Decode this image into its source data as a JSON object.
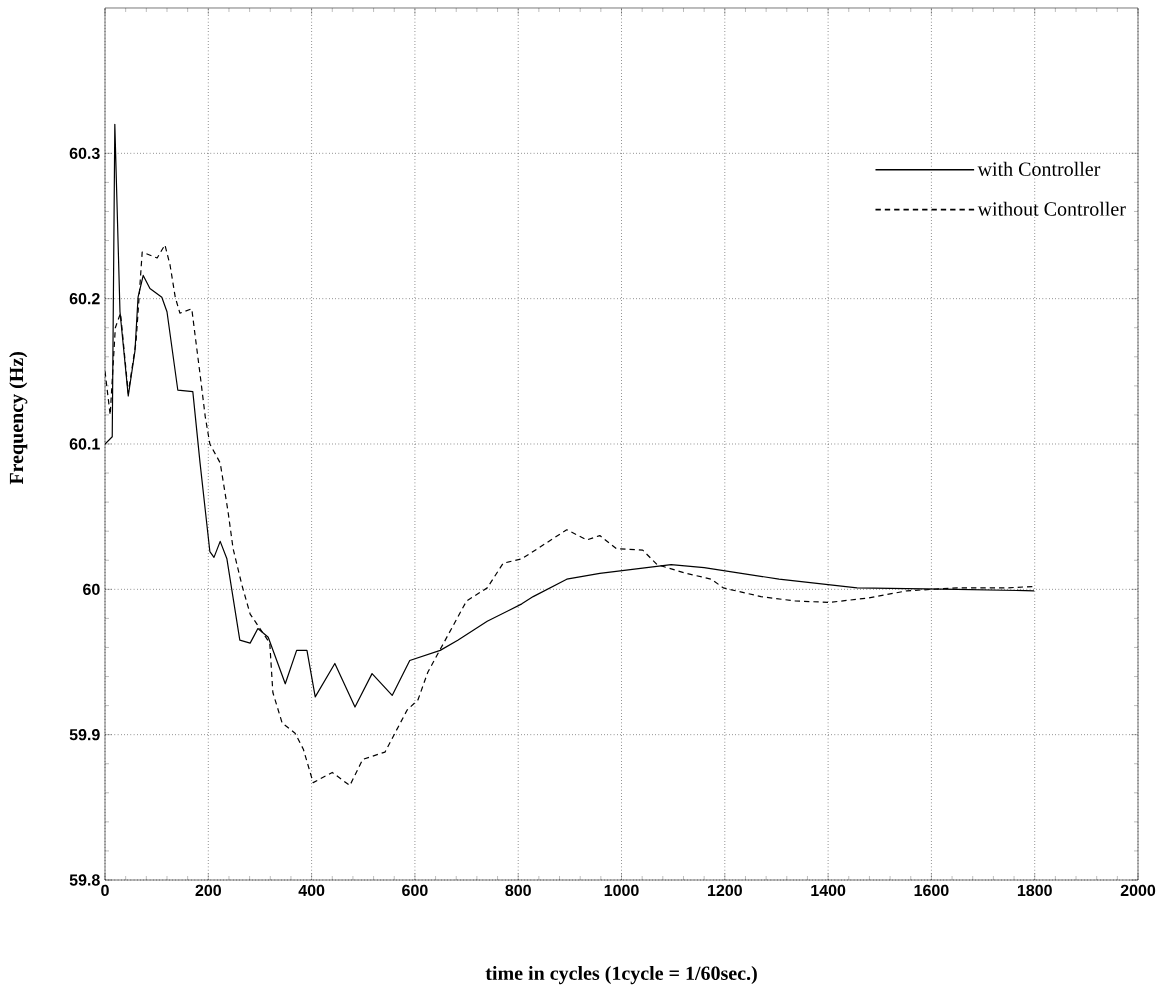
{
  "chart_data": {
    "type": "line",
    "xlabel": "time in cycles (1cycle = 1/60sec.)",
    "ylabel": "Frequency (Hz)",
    "xlim": [
      0,
      2000
    ],
    "ylim": [
      59.8,
      60.4
    ],
    "xticks": [
      0,
      200,
      400,
      600,
      800,
      1000,
      1200,
      1400,
      1600,
      1800,
      2000
    ],
    "yticks": [
      59.8,
      59.9,
      60,
      60.1,
      60.2,
      60.3
    ],
    "grid": true,
    "legend": "top right",
    "series": [
      {
        "name": "with Controller",
        "color": "#000000",
        "line_style": "solid",
        "x": [
          0,
          14,
          19,
          29,
          45,
          58,
          64,
          74,
          87,
          110,
          120,
          141,
          170,
          184,
          203,
          211,
          223,
          236,
          261,
          281,
          296,
          316,
          349,
          371,
          391,
          407,
          445,
          484,
          517,
          556,
          590,
          649,
          683,
          740,
          807,
          829,
          894,
          958,
          1096,
          1160,
          1305,
          1456,
          1650,
          1799
        ],
        "values": [
          60.1,
          60.105,
          60.32,
          60.191,
          60.133,
          60.164,
          60.201,
          60.216,
          60.207,
          60.201,
          60.191,
          60.137,
          60.136,
          60.087,
          60.026,
          60.022,
          60.033,
          60.021,
          59.965,
          59.963,
          59.973,
          59.967,
          59.935,
          59.958,
          59.958,
          59.926,
          59.949,
          59.919,
          59.942,
          59.927,
          59.951,
          59.958,
          59.965,
          59.978,
          59.99,
          59.995,
          60.007,
          60.011,
          60.017,
          60.015,
          60.007,
          60.001,
          60.0,
          59.999
        ]
      },
      {
        "name": "without Controller",
        "color": "#000000",
        "line_style": "dashed",
        "x": [
          0,
          10,
          20,
          30,
          45,
          60,
          72,
          101,
          116,
          126,
          136,
          145,
          168,
          174,
          184,
          194,
          203,
          223,
          238,
          248,
          265,
          281,
          300,
          319,
          325,
          343,
          368,
          384,
          403,
          440,
          474,
          499,
          542,
          585,
          606,
          625,
          700,
          740,
          771,
          807,
          894,
          933,
          958,
          990,
          1041,
          1069,
          1125,
          1174,
          1197,
          1270,
          1336,
          1402,
          1477,
          1553,
          1650,
          1746,
          1799
        ],
        "values": [
          60.15,
          60.12,
          60.18,
          60.19,
          60.135,
          60.17,
          60.232,
          60.228,
          60.237,
          60.223,
          60.201,
          60.19,
          60.193,
          60.176,
          60.148,
          60.119,
          60.1,
          60.087,
          60.054,
          60.028,
          60.003,
          59.983,
          59.973,
          59.963,
          59.929,
          59.908,
          59.901,
          59.89,
          59.867,
          59.874,
          59.865,
          59.883,
          59.888,
          59.917,
          59.924,
          59.943,
          59.992,
          60.001,
          60.018,
          60.021,
          60.041,
          60.034,
          60.037,
          60.028,
          60.027,
          60.017,
          60.011,
          60.007,
          60.001,
          59.995,
          59.992,
          59.991,
          59.994,
          59.999,
          60.001,
          60.001,
          60.002
        ]
      }
    ]
  }
}
